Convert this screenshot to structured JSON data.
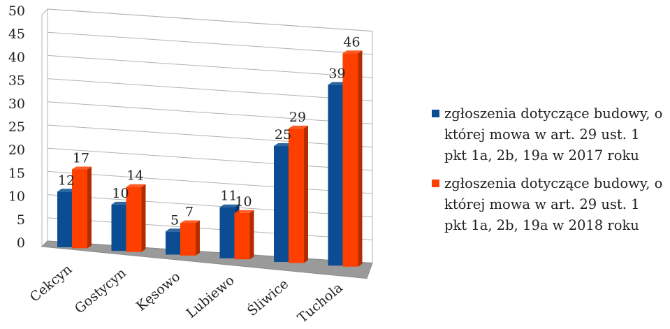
{
  "chart_data": {
    "type": "bar",
    "categories": [
      "Cekcyn",
      "Gostycyn",
      "Kęsowo",
      "Lubiewo",
      "Śliwice",
      "Tuchola"
    ],
    "series": [
      {
        "name": "zgłoszenia dotyczące budowy, o której mowa w art. 29 ust. 1 pkt 1a, 2b, 19a w 2017 roku",
        "values": [
          12,
          10,
          5,
          11,
          25,
          39
        ],
        "color": "#0b4c93"
      },
      {
        "name": "zgłoszenia dotyczące budowy, o której mowa w art. 29 ust. 1 pkt 1a, 2b, 19a w 2018 roku",
        "values": [
          17,
          14,
          7,
          10,
          29,
          46
        ],
        "color": "#ff3f00"
      }
    ],
    "yticks": [
      "0",
      "5",
      "10",
      "15",
      "20",
      "25",
      "30",
      "35",
      "40",
      "45",
      "50"
    ],
    "ylim": [
      0,
      50
    ],
    "grid": true,
    "legend_position": "right",
    "three_d": true
  }
}
